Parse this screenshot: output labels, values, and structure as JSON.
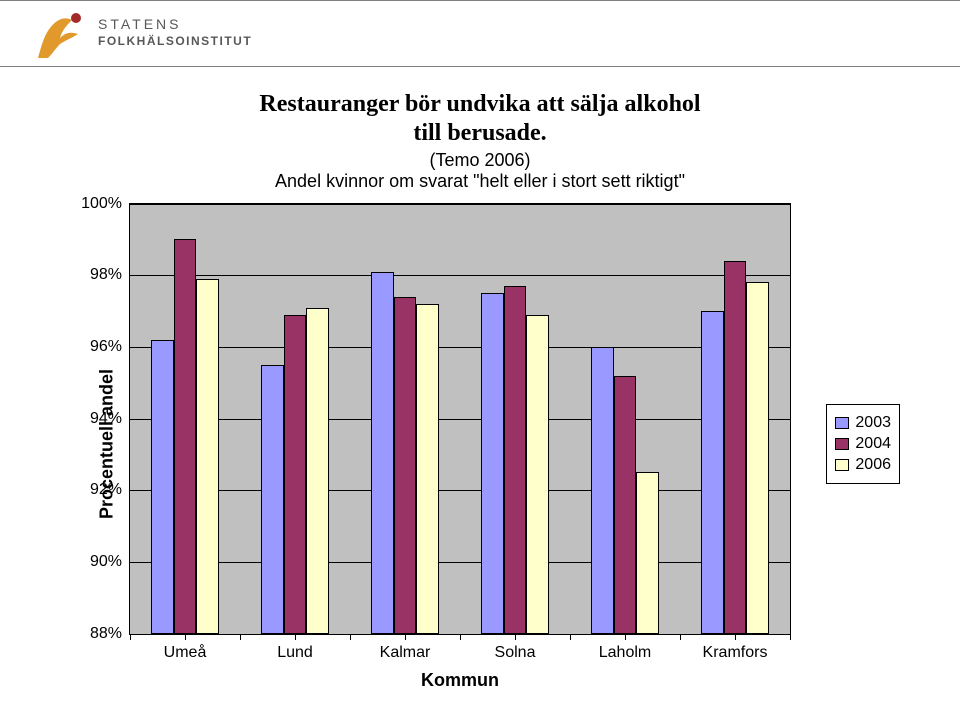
{
  "logo": {
    "line1": "STATENS",
    "line2": "FOLKHÄLSOINSTITUT",
    "icon_fill": "#e1992b",
    "icon_ball": "#a42a2a"
  },
  "chart": {
    "type": "bar",
    "title_line1": "Restauranger bör undvika att sälja alkohol",
    "title_line2": "till berusade.",
    "subtitle_line1": "(Temo 2006)",
    "subtitle_line2": "Andel kvinnor om svarat \"helt eller i stort sett riktigt\"",
    "background_color": "#c0c0c0",
    "grid_color": "#000000",
    "ymin": 88,
    "ymax": 100,
    "yticks": [
      88,
      90,
      92,
      94,
      96,
      98,
      100
    ],
    "ytick_labels": [
      "88%",
      "90%",
      "92%",
      "94%",
      "96%",
      "98%",
      "100%"
    ],
    "ylabel": "Procentuell andel",
    "xlabel": "Kommun",
    "categories": [
      "Umeå",
      "Lund",
      "Kalmar",
      "Solna",
      "Laholm",
      "Kramfors"
    ],
    "series": [
      {
        "name": "2003",
        "color": "#9999ff",
        "values": [
          96.2,
          95.5,
          98.1,
          97.5,
          96.0,
          97.0
        ]
      },
      {
        "name": "2004",
        "color": "#993366",
        "values": [
          99.0,
          96.9,
          97.4,
          97.7,
          95.2,
          98.4
        ]
      },
      {
        "name": "2006",
        "color": "#ffffcc",
        "values": [
          97.9,
          97.1,
          97.2,
          96.9,
          92.5,
          97.8
        ]
      }
    ],
    "bar_group_width": 0.62,
    "title_fontsize": 24,
    "subtitle_fontsize": 18,
    "axis_label_fontsize": 18,
    "tick_fontsize": 16,
    "legend_fontsize": 16
  }
}
